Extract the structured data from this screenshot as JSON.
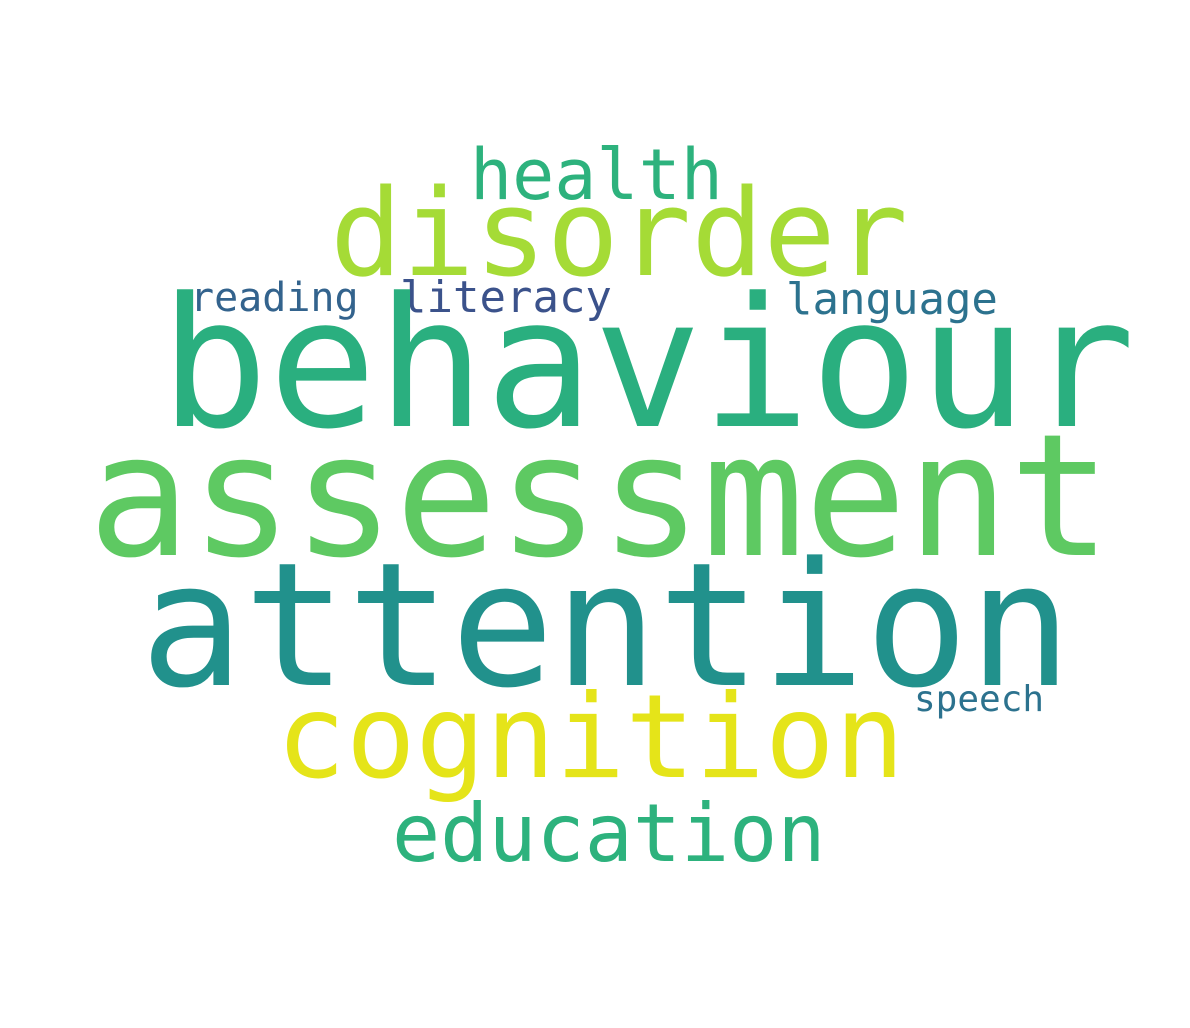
{
  "words": {
    "behaviour": {
      "text": "behaviour",
      "color": "#2aaf7f"
    },
    "assessment": {
      "text": "assessment",
      "color": "#5ec962"
    },
    "attention": {
      "text": "attention",
      "color": "#21918c"
    },
    "disorder": {
      "text": "disorder",
      "color": "#a5db36"
    },
    "cognition": {
      "text": "cognition",
      "color": "#e5e419"
    },
    "health": {
      "text": "health",
      "color": "#2db27d"
    },
    "education": {
      "text": "education",
      "color": "#2db27d"
    },
    "reading": {
      "text": "reading",
      "color": "#33638d"
    },
    "literacy": {
      "text": "literacy",
      "color": "#3b528b"
    },
    "language": {
      "text": "language",
      "color": "#2c728e"
    },
    "speech": {
      "text": "speech",
      "color": "#2c728e"
    }
  }
}
